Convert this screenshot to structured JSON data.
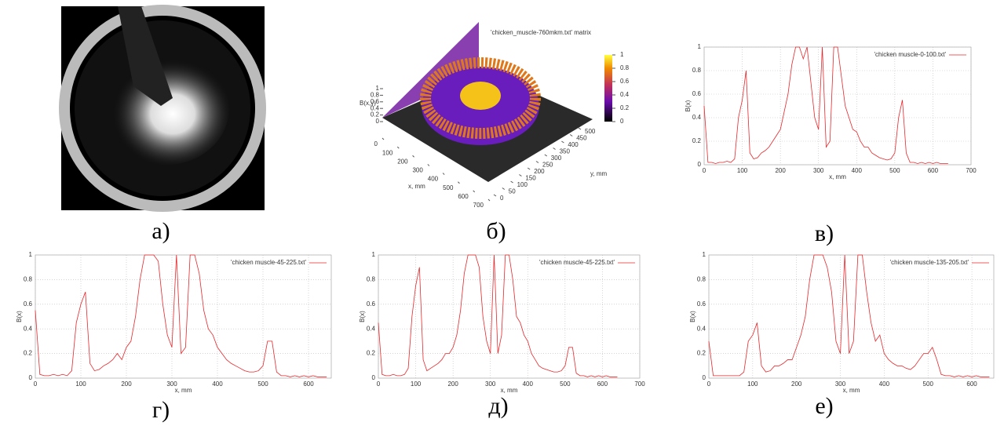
{
  "chart_data": [
    {
      "type": "image",
      "caption": "а)"
    },
    {
      "type": "surface3d",
      "title": "'chicken_muscle-760mkm.txt' matrix",
      "zlabel": "B(x,y)",
      "xlabel": "x, mm",
      "ylabel": "y, mm",
      "xlim": [
        0,
        700
      ],
      "xticks": [
        0,
        100,
        200,
        300,
        400,
        500,
        600,
        700
      ],
      "ylim": [
        0,
        500
      ],
      "yticks": [
        0,
        50,
        100,
        150,
        200,
        250,
        300,
        350,
        400,
        450,
        500
      ],
      "zlim": [
        0,
        1
      ],
      "zticks": [
        0,
        0.2,
        0.4,
        0.6,
        0.8,
        1
      ],
      "cblim": [
        0,
        1
      ],
      "cbticks": [
        0,
        0.2,
        0.4,
        0.6,
        0.8,
        1
      ],
      "caption": "б)"
    },
    {
      "type": "line",
      "xlabel": "x, mm",
      "ylabel": "B(x)",
      "grid": true,
      "legend": "top-right",
      "x": [
        0,
        10,
        20,
        30,
        40,
        50,
        60,
        70,
        80,
        90,
        100,
        110,
        120,
        130,
        140,
        150,
        160,
        170,
        180,
        190,
        200,
        210,
        220,
        230,
        240,
        250,
        260,
        270,
        280,
        290,
        300,
        310,
        320,
        330,
        340,
        350,
        360,
        370,
        380,
        390,
        400,
        410,
        420,
        430,
        440,
        450,
        460,
        470,
        480,
        490,
        500,
        510,
        520,
        530,
        540,
        550,
        560,
        570,
        580,
        590,
        600,
        610,
        620,
        630,
        640
      ],
      "series": [
        {
          "name": "'chicken muscle-0-100.txt'",
          "color": "#e8262a",
          "values": [
            0.5,
            0.02,
            0.02,
            0.01,
            0.02,
            0.02,
            0.03,
            0.02,
            0.05,
            0.4,
            0.55,
            0.8,
            0.1,
            0.05,
            0.06,
            0.1,
            0.12,
            0.15,
            0.2,
            0.25,
            0.3,
            0.45,
            0.6,
            0.85,
            1,
            1,
            0.9,
            1,
            0.7,
            0.4,
            0.3,
            1,
            0.15,
            0.2,
            1,
            1,
            0.75,
            0.5,
            0.4,
            0.3,
            0.28,
            0.2,
            0.15,
            0.15,
            0.1,
            0.08,
            0.06,
            0.05,
            0.04,
            0.05,
            0.1,
            0.4,
            0.55,
            0.1,
            0.02,
            0.02,
            0.01,
            0.02,
            0.01,
            0.02,
            0.01,
            0.02,
            0.01,
            0.01,
            0.01
          ]
        }
      ],
      "xlim": [
        0,
        700
      ],
      "xticks": [
        0,
        100,
        200,
        300,
        400,
        500,
        600,
        700
      ],
      "ylim": [
        0,
        1
      ],
      "yticks": [
        0,
        0.2,
        0.4,
        0.6,
        0.8,
        1
      ],
      "caption": "в)"
    },
    {
      "type": "line",
      "xlabel": "x, mm",
      "ylabel": "B(x)",
      "grid": true,
      "legend": "top-right",
      "x": [
        0,
        10,
        20,
        30,
        40,
        50,
        60,
        70,
        80,
        90,
        100,
        110,
        120,
        130,
        140,
        150,
        160,
        170,
        180,
        190,
        200,
        210,
        220,
        230,
        240,
        250,
        260,
        270,
        280,
        290,
        300,
        310,
        320,
        330,
        340,
        350,
        360,
        370,
        380,
        390,
        400,
        410,
        420,
        430,
        440,
        450,
        460,
        470,
        480,
        490,
        500,
        510,
        520,
        530,
        540,
        550,
        560,
        570,
        580,
        590,
        600,
        610,
        620,
        630,
        640
      ],
      "series": [
        {
          "name": "'chicken muscle-45-225.txt'",
          "color": "#e8262a",
          "values": [
            0.55,
            0.03,
            0.02,
            0.02,
            0.03,
            0.02,
            0.03,
            0.02,
            0.06,
            0.45,
            0.6,
            0.7,
            0.12,
            0.06,
            0.07,
            0.1,
            0.12,
            0.15,
            0.2,
            0.15,
            0.25,
            0.3,
            0.5,
            0.8,
            1,
            1,
            1,
            0.95,
            0.6,
            0.35,
            0.25,
            1,
            0.2,
            0.25,
            1,
            1,
            0.85,
            0.55,
            0.4,
            0.35,
            0.25,
            0.2,
            0.15,
            0.12,
            0.1,
            0.08,
            0.06,
            0.05,
            0.05,
            0.06,
            0.1,
            0.3,
            0.3,
            0.05,
            0.02,
            0.02,
            0.01,
            0.02,
            0.01,
            0.02,
            0.01,
            0.02,
            0.01,
            0.01,
            0.01
          ]
        }
      ],
      "xlim": [
        0,
        650
      ],
      "xticks": [
        0,
        100,
        200,
        300,
        400,
        500,
        600
      ],
      "ylim": [
        0,
        1
      ],
      "yticks": [
        0,
        0.2,
        0.4,
        0.6,
        0.8,
        1
      ],
      "caption": "г)"
    },
    {
      "type": "line",
      "xlabel": "x, mm",
      "ylabel": "B(x)",
      "grid": true,
      "legend": "top-right",
      "x": [
        0,
        10,
        20,
        30,
        40,
        50,
        60,
        70,
        80,
        90,
        100,
        110,
        120,
        130,
        140,
        150,
        160,
        170,
        180,
        190,
        200,
        210,
        220,
        230,
        240,
        250,
        260,
        270,
        280,
        290,
        300,
        310,
        320,
        330,
        340,
        350,
        360,
        370,
        380,
        390,
        400,
        410,
        420,
        430,
        440,
        450,
        460,
        470,
        480,
        490,
        500,
        510,
        520,
        530,
        540,
        550,
        560,
        570,
        580,
        590,
        600,
        610,
        620,
        630,
        640
      ],
      "series": [
        {
          "name": "'chicken muscle-45-225.txt'",
          "color": "#e8262a",
          "values": [
            0.45,
            0.03,
            0.02,
            0.02,
            0.03,
            0.02,
            0.02,
            0.03,
            0.08,
            0.5,
            0.75,
            0.9,
            0.15,
            0.06,
            0.08,
            0.1,
            0.12,
            0.15,
            0.2,
            0.2,
            0.25,
            0.35,
            0.55,
            0.85,
            1,
            1,
            1,
            0.9,
            0.5,
            0.3,
            0.2,
            1,
            0.2,
            0.35,
            1,
            1,
            0.8,
            0.5,
            0.45,
            0.35,
            0.3,
            0.2,
            0.15,
            0.1,
            0.08,
            0.07,
            0.06,
            0.05,
            0.05,
            0.06,
            0.1,
            0.25,
            0.25,
            0.04,
            0.02,
            0.02,
            0.01,
            0.02,
            0.01,
            0.02,
            0.01,
            0.02,
            0.01,
            0.01,
            0.01
          ]
        }
      ],
      "xlim": [
        0,
        700
      ],
      "xticks": [
        0,
        100,
        200,
        300,
        400,
        500,
        600,
        700
      ],
      "ylim": [
        0,
        1
      ],
      "yticks": [
        0,
        0.2,
        0.4,
        0.6,
        0.8,
        1
      ],
      "caption": "д)"
    },
    {
      "type": "line",
      "xlabel": "x, mm",
      "ylabel": "B(x)",
      "grid": true,
      "legend": "top-right",
      "x": [
        0,
        10,
        20,
        30,
        40,
        50,
        60,
        70,
        80,
        90,
        100,
        110,
        120,
        130,
        140,
        150,
        160,
        170,
        180,
        190,
        200,
        210,
        220,
        230,
        240,
        250,
        260,
        270,
        280,
        290,
        300,
        310,
        320,
        330,
        340,
        350,
        360,
        370,
        380,
        390,
        400,
        410,
        420,
        430,
        440,
        450,
        460,
        470,
        480,
        490,
        500,
        510,
        520,
        530,
        540,
        550,
        560,
        570,
        580,
        590,
        600,
        610,
        620,
        630,
        640
      ],
      "series": [
        {
          "name": "'chicken muscle-135-205.txt'",
          "color": "#e8262a",
          "values": [
            0.3,
            0.02,
            0.02,
            0.02,
            0.02,
            0.02,
            0.02,
            0.02,
            0.05,
            0.3,
            0.35,
            0.45,
            0.1,
            0.05,
            0.06,
            0.1,
            0.1,
            0.12,
            0.15,
            0.15,
            0.25,
            0.35,
            0.5,
            0.8,
            1,
            1,
            1,
            0.9,
            0.7,
            0.3,
            0.2,
            1,
            0.2,
            0.3,
            1,
            1,
            0.7,
            0.45,
            0.3,
            0.35,
            0.2,
            0.15,
            0.12,
            0.1,
            0.1,
            0.08,
            0.07,
            0.1,
            0.15,
            0.2,
            0.2,
            0.25,
            0.15,
            0.03,
            0.02,
            0.02,
            0.01,
            0.02,
            0.01,
            0.02,
            0.01,
            0.02,
            0.01,
            0.01,
            0.01
          ]
        }
      ],
      "xlim": [
        0,
        650
      ],
      "xticks": [
        0,
        100,
        200,
        300,
        400,
        500,
        600
      ],
      "ylim": [
        0,
        1
      ],
      "yticks": [
        0,
        0.2,
        0.4,
        0.6,
        0.8,
        1
      ],
      "caption": "е)"
    }
  ]
}
